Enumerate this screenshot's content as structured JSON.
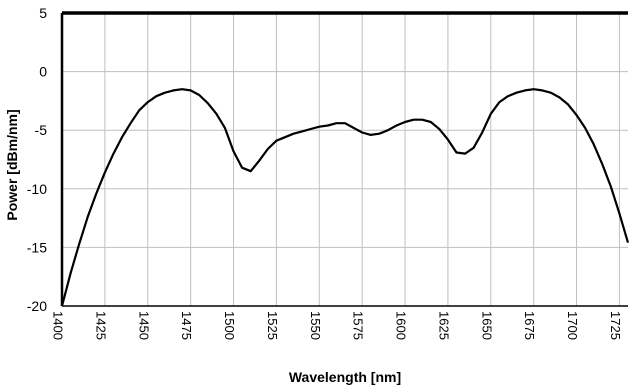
{
  "chart_data": {
    "type": "line",
    "title": "",
    "xlabel": "Wavelength [nm]",
    "ylabel": "Power [dBm/nm]",
    "xlim": [
      1400,
      1730
    ],
    "ylim": [
      -20,
      5
    ],
    "xticks": [
      "1400",
      "1425",
      "1450",
      "1475",
      "1500",
      "1525",
      "1550",
      "1575",
      "1600",
      "1625",
      "1650",
      "1675",
      "1700",
      "1725"
    ],
    "yticks": [
      "5",
      "0",
      "-5",
      "-10",
      "-15",
      "-20"
    ],
    "grid": true,
    "legend": "none",
    "line_color": "#000000",
    "series": [
      {
        "x": [
          1400,
          1405,
          1410,
          1415,
          1420,
          1425,
          1430,
          1435,
          1440,
          1445,
          1450,
          1455,
          1460,
          1465,
          1470,
          1475,
          1480,
          1485,
          1490,
          1495,
          1500,
          1505,
          1510,
          1515,
          1520,
          1525,
          1530,
          1535,
          1540,
          1545,
          1550,
          1555,
          1560,
          1565,
          1570,
          1575,
          1580,
          1585,
          1590,
          1595,
          1600,
          1605,
          1610,
          1615,
          1620,
          1625,
          1630,
          1635,
          1640,
          1645,
          1650,
          1655,
          1660,
          1665,
          1670,
          1675,
          1680,
          1685,
          1690,
          1695,
          1700,
          1705,
          1710,
          1715,
          1720,
          1725,
          1730
        ],
        "y": [
          -20.0,
          -17.2,
          -14.7,
          -12.4,
          -10.4,
          -8.6,
          -7.0,
          -5.6,
          -4.4,
          -3.3,
          -2.6,
          -2.1,
          -1.8,
          -1.6,
          -1.5,
          -1.6,
          -2.0,
          -2.7,
          -3.6,
          -4.8,
          -6.8,
          -8.2,
          -8.5,
          -7.6,
          -6.6,
          -5.9,
          -5.6,
          -5.3,
          -5.1,
          -4.9,
          -4.7,
          -4.6,
          -4.4,
          -4.4,
          -4.8,
          -5.2,
          -5.4,
          -5.3,
          -5.0,
          -4.6,
          -4.3,
          -4.1,
          -4.1,
          -4.3,
          -4.9,
          -5.8,
          -6.9,
          -7.0,
          -6.5,
          -5.2,
          -3.6,
          -2.6,
          -2.1,
          -1.8,
          -1.6,
          -1.5,
          -1.6,
          -1.8,
          -2.2,
          -2.8,
          -3.7,
          -4.8,
          -6.2,
          -7.9,
          -9.8,
          -12.1,
          -14.6
        ]
      }
    ]
  }
}
